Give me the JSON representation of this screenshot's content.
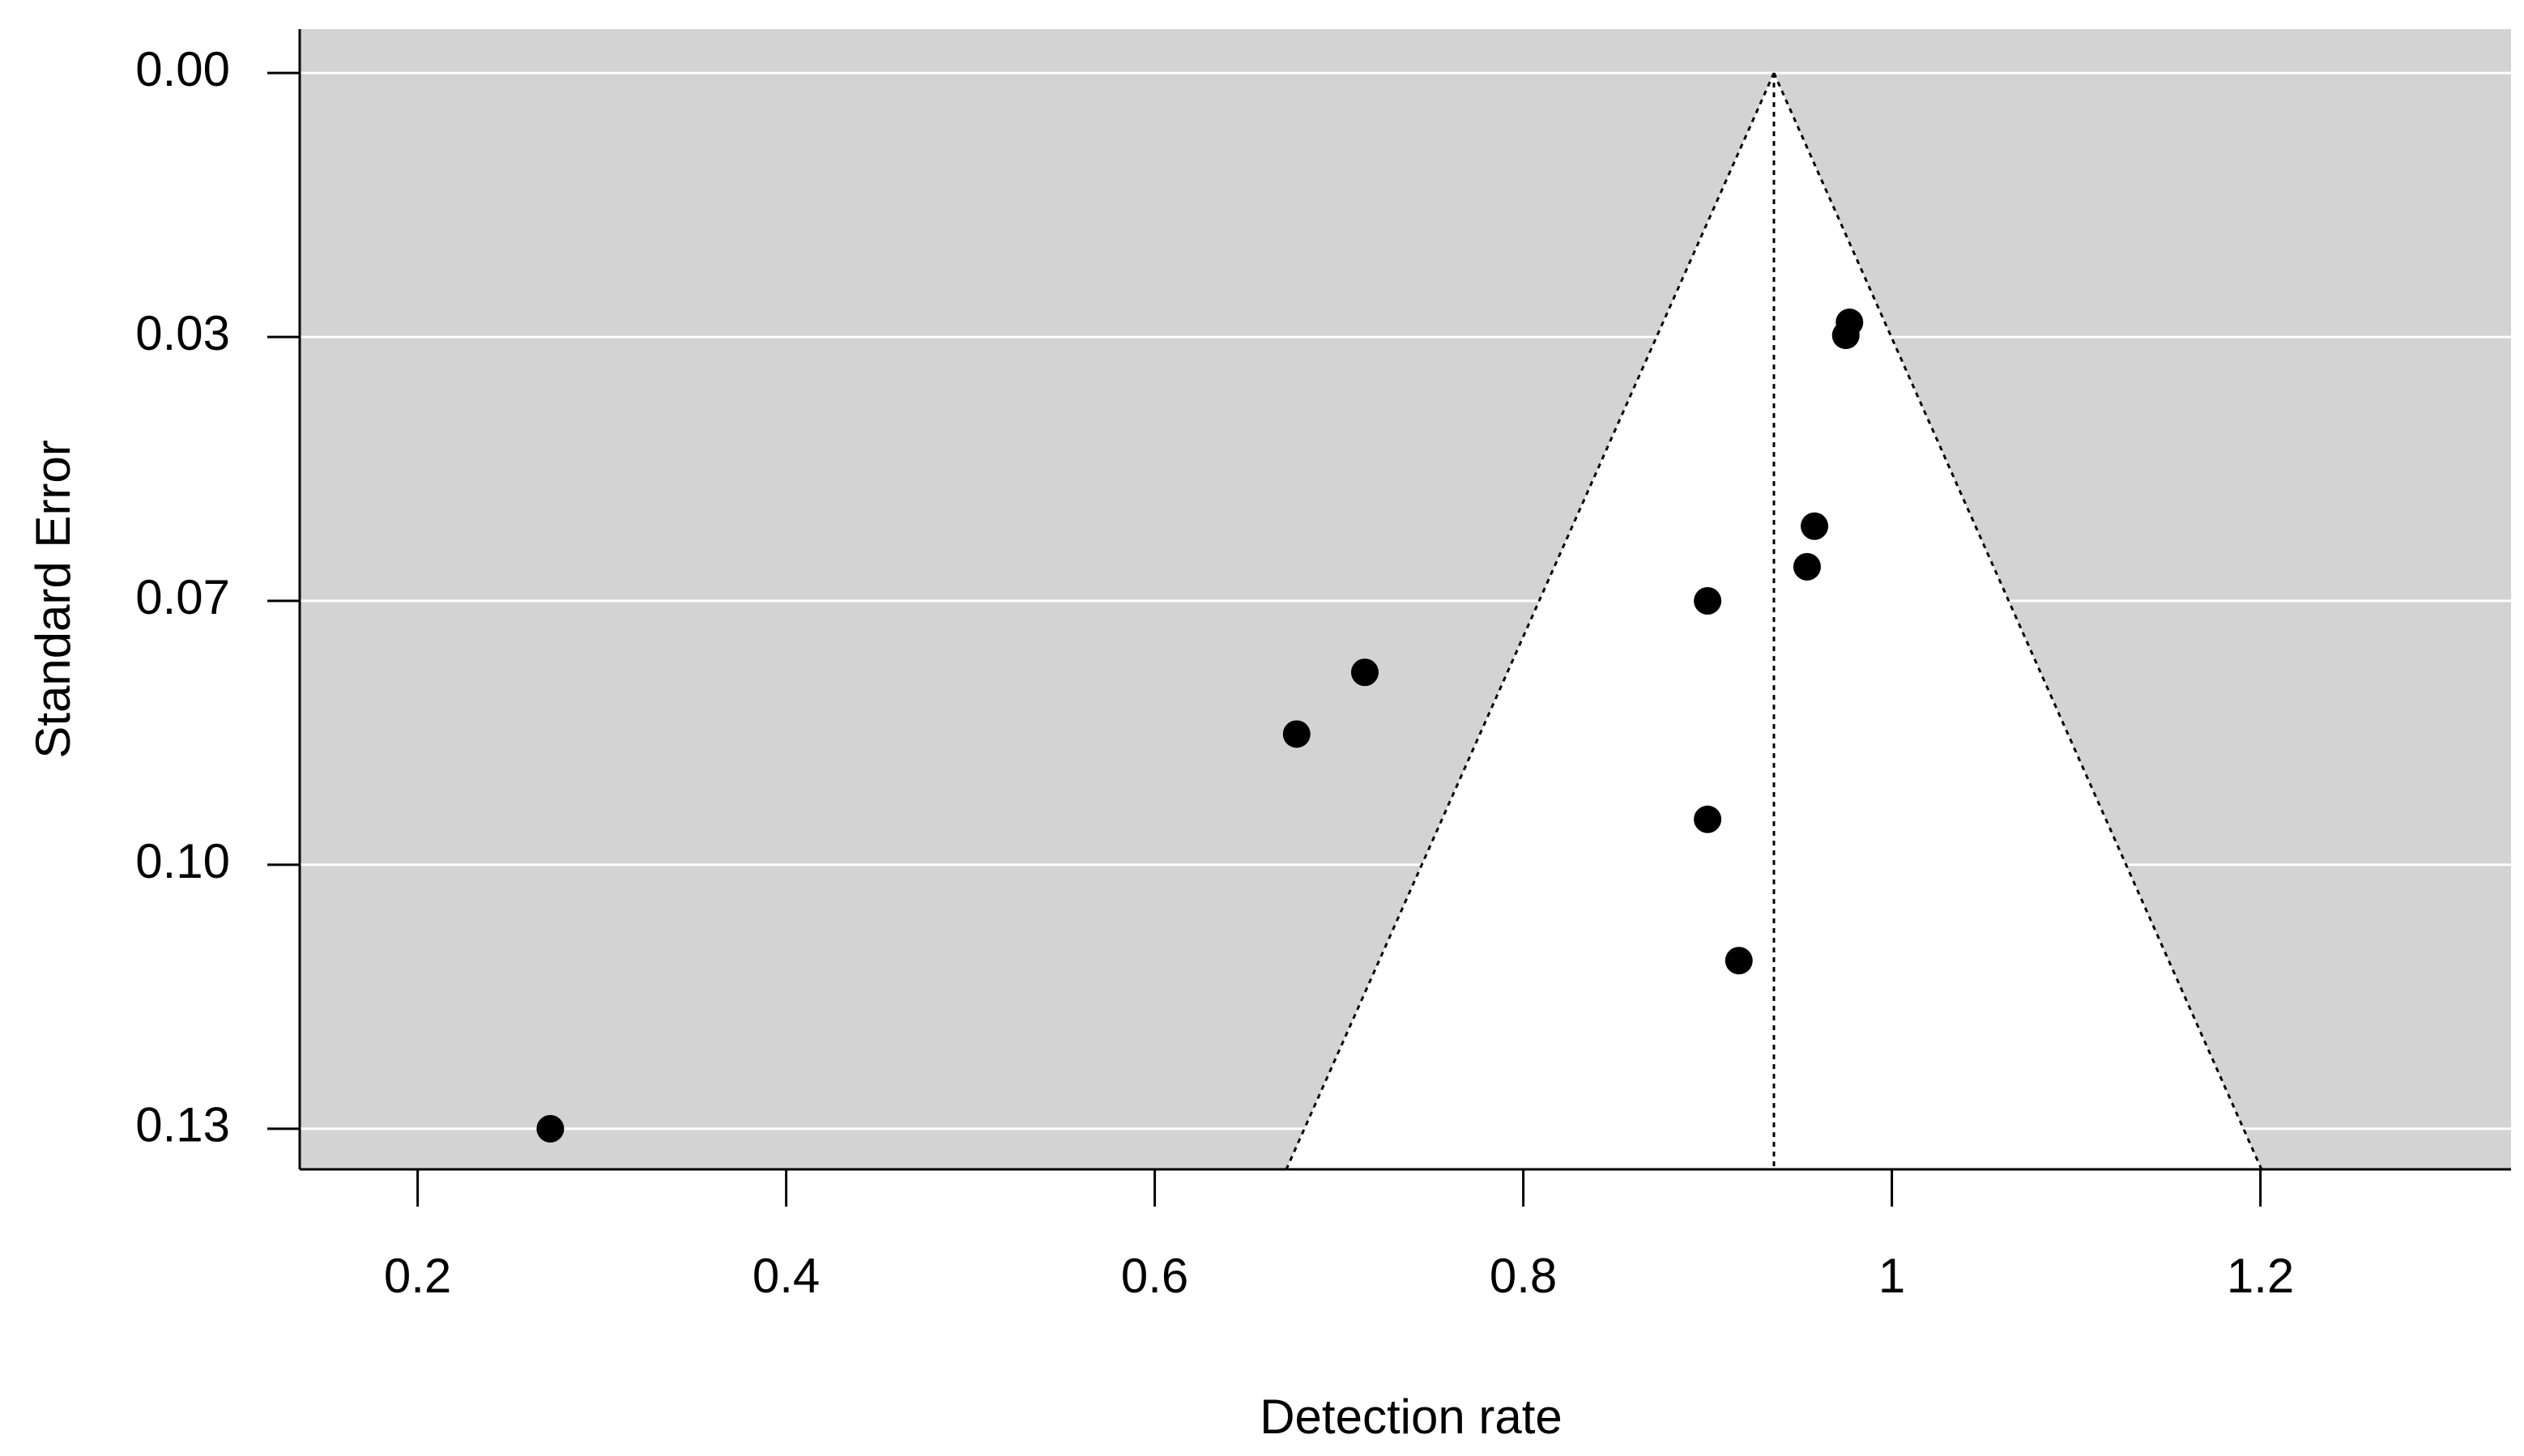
{
  "chart_data": {
    "type": "funnel",
    "x_label": "Detection rate",
    "y_label": "Standard Error",
    "x": [
      0.977,
      0.975,
      0.958,
      0.954,
      0.9,
      0.714,
      0.677,
      0.9,
      0.917,
      0.272
    ],
    "values": [
      0.0307,
      0.0323,
      0.0558,
      0.0608,
      0.065,
      0.0738,
      0.0814,
      0.0919,
      0.1093,
      0.13
    ],
    "color": "#000000",
    "estimate": 0.936,
    "funnel_z": 1.96,
    "xlim": [
      0.136,
      1.336
    ],
    "xticks": [
      0.2,
      0.4,
      0.6,
      0.8,
      1,
      1.2
    ],
    "ylim": [
      0.135,
      -0.0054
    ],
    "yticks": [
      {
        "value": 0,
        "label": "0.00"
      },
      {
        "value": 0.0325,
        "label": "0.03"
      },
      {
        "value": 0.065,
        "label": "0.07"
      },
      {
        "value": 0.0975,
        "label": "0.10"
      },
      {
        "value": 0.13,
        "label": "0.13"
      }
    ],
    "grid": true
  }
}
